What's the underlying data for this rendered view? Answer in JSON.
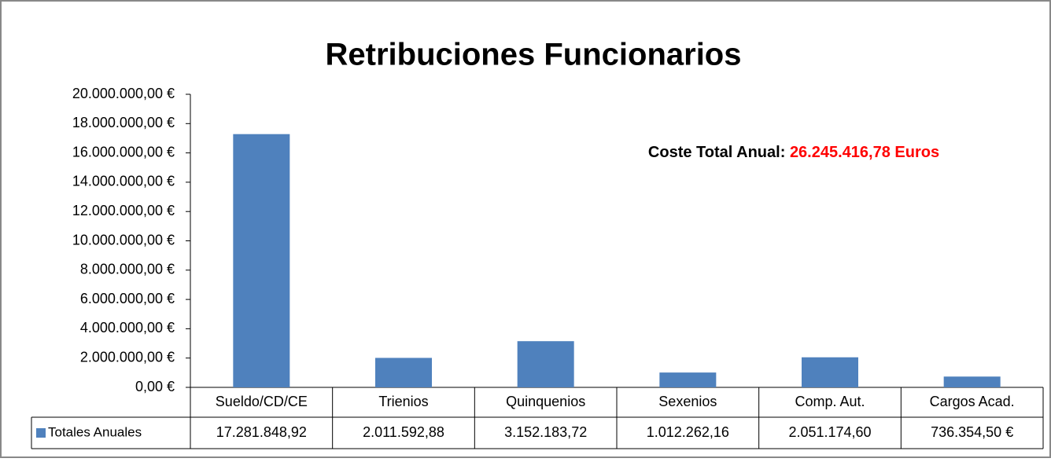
{
  "chart_data": {
    "type": "bar",
    "title": "Retribuciones Funcionarios",
    "annotation": {
      "label": "Coste Total Anual:",
      "value": "26.245.416,78 Euros"
    },
    "categories": [
      "Sueldo/CD/CE",
      "Trienios",
      "Quinquenios",
      "Sexenios",
      "Comp. Aut.",
      "Cargos Acad."
    ],
    "series": [
      {
        "name": "Totales Anuales",
        "color": "#4f81bd",
        "values": [
          17281848.92,
          2011592.88,
          3152183.72,
          1012262.16,
          2051174.6,
          736354.5
        ],
        "value_labels": [
          "17.281.848,92",
          "2.011.592,88",
          "3.152.183,72",
          "1.012.262,16",
          "2.051.174,60",
          "736.354,50 €"
        ]
      }
    ],
    "ylim": [
      0,
      20000000
    ],
    "yticks": [
      {
        "value": 0,
        "label": "0,00 €"
      },
      {
        "value": 2000000,
        "label": "2.000.000,00 €"
      },
      {
        "value": 4000000,
        "label": "4.000.000,00 €"
      },
      {
        "value": 6000000,
        "label": "6.000.000,00 €"
      },
      {
        "value": 8000000,
        "label": "8.000.000,00 €"
      },
      {
        "value": 10000000,
        "label": "10.000.000,00 €"
      },
      {
        "value": 12000000,
        "label": "12.000.000,00 €"
      },
      {
        "value": 14000000,
        "label": "14.000.000,00 €"
      },
      {
        "value": 16000000,
        "label": "16.000.000,00 €"
      },
      {
        "value": 18000000,
        "label": "18.000.000,00 €"
      },
      {
        "value": 20000000,
        "label": "20.000.000,00 €"
      }
    ],
    "grid": false
  }
}
